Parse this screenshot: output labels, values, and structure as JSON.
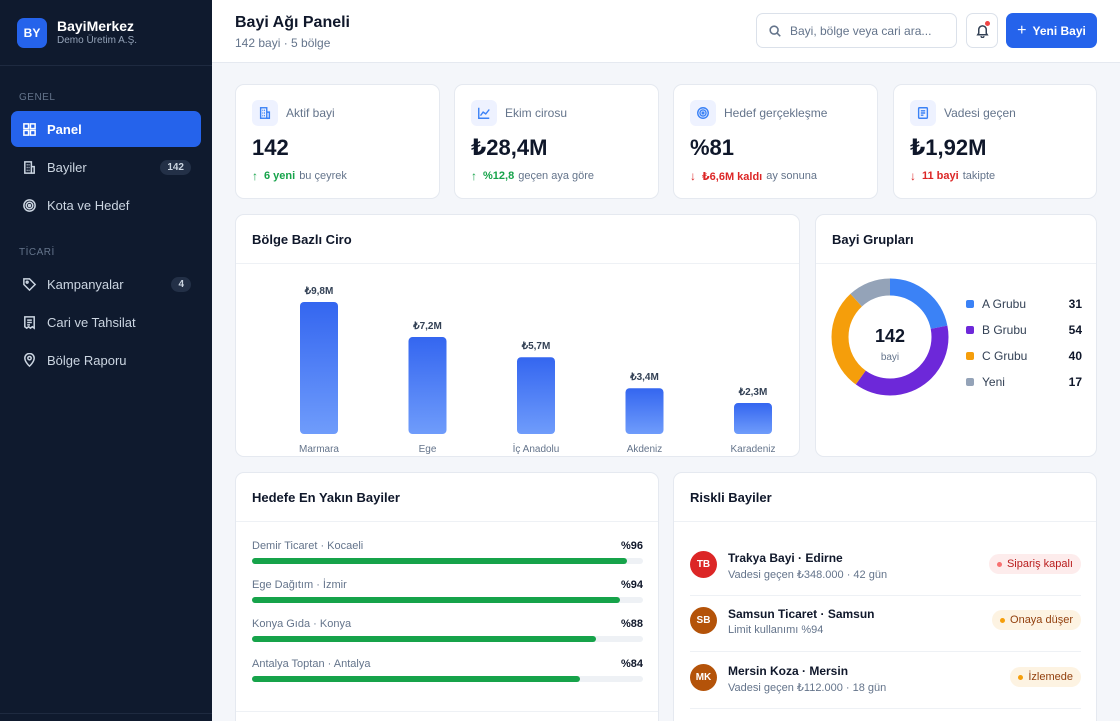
{
  "brand": {
    "logo": "BY",
    "name": "BayiMerkez",
    "company": "Demo Üretim A.Ş."
  },
  "sidebar": {
    "sections": [
      {
        "title": "GENEL",
        "items": [
          {
            "label": "Panel",
            "icon": "grid-icon",
            "active": true
          },
          {
            "label": "Bayiler",
            "icon": "building-icon",
            "badge": "142"
          },
          {
            "label": "Kota ve Hedef",
            "icon": "target-icon"
          }
        ]
      },
      {
        "title": "TİCARİ",
        "items": [
          {
            "label": "Kampanyalar",
            "icon": "tag-icon",
            "badge": "4"
          },
          {
            "label": "Cari ve Tahsilat",
            "icon": "receipt-icon"
          },
          {
            "label": "Bölge Raporu",
            "icon": "map-pin-icon"
          }
        ]
      }
    ]
  },
  "header": {
    "title": "Bayi Ağı Paneli",
    "subtitle": "142 bayi · 5 bölge",
    "search_placeholder": "Bayi, bölge veya cari ara...",
    "new_button": "Yeni Bayi"
  },
  "kpis": [
    {
      "label": "Aktif bayi",
      "icon": "building-icon",
      "value": "142",
      "arrow": "↑",
      "trend": "up",
      "strong": "6 yeni",
      "rest": "bu çeyrek"
    },
    {
      "label": "Ekim cirosu",
      "icon": "chart-icon",
      "value": "₺28,4M",
      "arrow": "↑",
      "trend": "up",
      "strong": "%12,8",
      "rest": "geçen aya göre"
    },
    {
      "label": "Hedef gerçekleşme",
      "icon": "target-icon",
      "value": "%81",
      "arrow": "↓",
      "trend": "down",
      "strong": "₺6,6M kaldı",
      "rest": "ay sonuna"
    },
    {
      "label": "Vadesi geçen",
      "icon": "document-icon",
      "value": "₺1,92M",
      "arrow": "↓",
      "trend": "down",
      "strong": "11 bayi",
      "rest": "takipte"
    }
  ],
  "region_card": {
    "title": "Bölge Bazlı Ciro"
  },
  "chart_data": {
    "type": "bar",
    "categories": [
      "Marmara",
      "Ege",
      "İç Anadolu",
      "Akdeniz",
      "Karadeniz"
    ],
    "values": [
      9.8,
      7.2,
      5.7,
      3.4,
      2.3
    ],
    "data_labels": [
      "₺9,8M",
      "₺7,2M",
      "₺5,7M",
      "₺3,4M",
      "₺2,3M"
    ],
    "title": "Bölge Bazlı Ciro",
    "ylim": [
      0,
      9.8
    ],
    "grid": false,
    "color": "#3b6ff5"
  },
  "groups_card": {
    "title": "Bayi Grupları",
    "center_value": "142",
    "center_label": "bayi",
    "items": [
      {
        "label": "A Grubu",
        "value": 31,
        "color": "#3b82f6"
      },
      {
        "label": "B Grubu",
        "value": 54,
        "color": "#6d28d9"
      },
      {
        "label": "C Grubu",
        "value": 40,
        "color": "#f59e0b"
      },
      {
        "label": "Yeni",
        "value": 17,
        "color": "#94a3b8"
      }
    ]
  },
  "targets_card": {
    "title": "Hedefe En Yakın Bayiler",
    "items": [
      {
        "name": "Demir Ticaret · Kocaeli",
        "pct_label": "%96",
        "pct": 96
      },
      {
        "name": "Ege Dağıtım · İzmir",
        "pct_label": "%94",
        "pct": 94
      },
      {
        "name": "Konya Gıda · Konya",
        "pct_label": "%88",
        "pct": 88
      },
      {
        "name": "Antalya Toptan · Antalya",
        "pct_label": "%84",
        "pct": 84
      }
    ]
  },
  "risk_card": {
    "title": "Riskli Bayiler",
    "items": [
      {
        "initials": "TB",
        "avatar_color": "#dc2626",
        "name": "Trakya Bayi · Edirne",
        "detail": "Vadesi geçen ₺348.000 · 42 gün",
        "tag": "Sipariş kapalı",
        "tag_bg": "#fdecec",
        "tag_color": "#b91c1c",
        "dot": "#f87171"
      },
      {
        "initials": "SB",
        "avatar_color": "#b45309",
        "name": "Samsun Ticaret · Samsun",
        "detail": "Limit kullanımı %94",
        "tag": "Onaya düşer",
        "tag_bg": "#fdf3e2",
        "tag_color": "#92400e",
        "dot": "#f59e0b"
      },
      {
        "initials": "MK",
        "avatar_color": "#b45309",
        "name": "Mersin Koza · Mersin",
        "detail": "Vadesi geçen ₺112.000 · 18 gün",
        "tag": "İzlemede",
        "tag_bg": "#fdf3e2",
        "tag_color": "#92400e",
        "dot": "#f59e0b"
      }
    ]
  }
}
